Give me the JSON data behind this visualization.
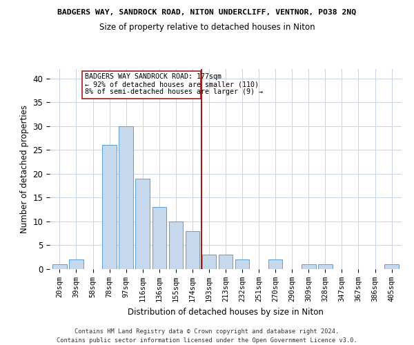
{
  "title": "BADGERS WAY, SANDROCK ROAD, NITON UNDERCLIFF, VENTNOR, PO38 2NQ",
  "subtitle": "Size of property relative to detached houses in Niton",
  "xlabel": "Distribution of detached houses by size in Niton",
  "ylabel": "Number of detached properties",
  "footnote1": "Contains HM Land Registry data © Crown copyright and database right 2024.",
  "footnote2": "Contains public sector information licensed under the Open Government Licence v3.0.",
  "annotation_line1": "BADGERS WAY SANDROCK ROAD: 177sqm",
  "annotation_line2": "← 92% of detached houses are smaller (110)",
  "annotation_line3": "8% of semi-detached houses are larger (9) →",
  "bar_color": "#c6d9ec",
  "bar_edge_color": "#5a9fd4",
  "line_color": "#9b1c1c",
  "box_edge_color": "#9b1c1c",
  "background_color": "#ffffff",
  "grid_color": "#c8d4e4",
  "categories": [
    "20sqm",
    "39sqm",
    "58sqm",
    "78sqm",
    "97sqm",
    "116sqm",
    "136sqm",
    "155sqm",
    "174sqm",
    "193sqm",
    "213sqm",
    "232sqm",
    "251sqm",
    "270sqm",
    "290sqm",
    "309sqm",
    "328sqm",
    "347sqm",
    "367sqm",
    "386sqm",
    "405sqm"
  ],
  "values": [
    1,
    2,
    0,
    26,
    30,
    19,
    13,
    10,
    8,
    3,
    3,
    2,
    0,
    2,
    0,
    1,
    1,
    0,
    0,
    0,
    1
  ],
  "ylim": [
    0,
    42
  ],
  "yticks": [
    0,
    5,
    10,
    15,
    20,
    25,
    30,
    35,
    40
  ],
  "vline_index": 8.55
}
